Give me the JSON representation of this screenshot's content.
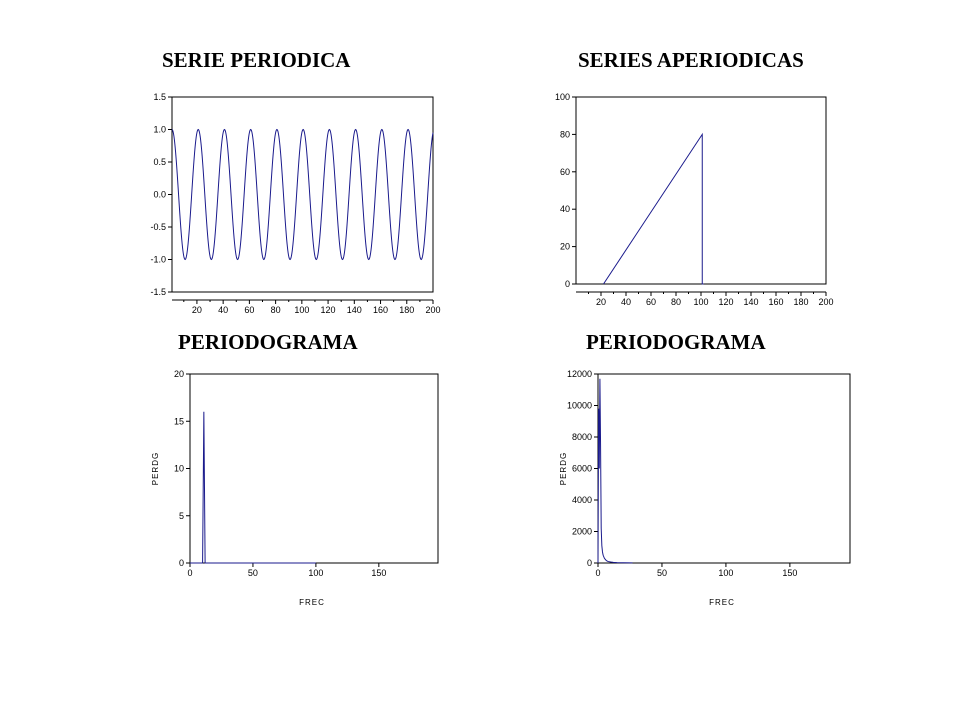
{
  "titles": {
    "top_left": "SERIE PERIODICA",
    "top_right": "SERIES APERIODICAS",
    "bottom_left": "PERIODOGRAMA",
    "bottom_right": "PERIODOGRAMA"
  },
  "colors": {
    "line": "#1a1a8c",
    "axis": "#000000"
  },
  "chart_data": [
    {
      "id": "periodic",
      "type": "line",
      "title": "SERIE PERIODICA",
      "xlabel": "",
      "ylabel": "",
      "xlim": [
        1,
        200
      ],
      "ylim": [
        -1.5,
        1.5
      ],
      "xticks": [
        20,
        40,
        60,
        80,
        100,
        120,
        140,
        160,
        180,
        200
      ],
      "yticks": [
        -1.5,
        -1.0,
        -0.5,
        0.0,
        0.5,
        1.0,
        1.5
      ],
      "ytick_labels": [
        "-1.5",
        "-1.0",
        "-0.5",
        "0.0",
        "0.5",
        "1.0",
        "1.5"
      ],
      "series": [
        {
          "function": "cos(2*pi*(t-1)/20)",
          "x_range": [
            1,
            200
          ]
        }
      ]
    },
    {
      "id": "aperiodic",
      "type": "line",
      "title": "SERIES APERIODICAS",
      "xlabel": "",
      "ylabel": "",
      "xlim": [
        0,
        200
      ],
      "ylim": [
        0,
        100
      ],
      "xticks": [
        20,
        40,
        60,
        80,
        100,
        120,
        140,
        160,
        180,
        200
      ],
      "yticks": [
        0,
        20,
        40,
        60,
        80,
        100
      ],
      "ytick_labels": [
        "0",
        "20",
        "40",
        "60",
        "80",
        "100"
      ],
      "series": [
        {
          "x": [
            22,
            101,
            101,
            101,
            102
          ],
          "y": [
            0,
            80,
            42,
            0,
            0
          ]
        }
      ]
    },
    {
      "id": "periodogram_periodic",
      "type": "line",
      "title": "PERIODOGRAMA",
      "xlabel": "FREC",
      "ylabel": "PERDG",
      "xlim": [
        0,
        197
      ],
      "ylim": [
        0,
        20
      ],
      "xticks": [
        0,
        50,
        100,
        150
      ],
      "yticks": [
        0,
        5,
        10,
        15,
        20
      ],
      "ytick_labels": [
        "0",
        "5",
        "10",
        "15",
        "20"
      ],
      "series": [
        {
          "x": [
            0,
            10,
            10.5,
            11,
            11.5,
            12,
            100
          ],
          "y": [
            0,
            0,
            8,
            16,
            8,
            0,
            0
          ]
        }
      ]
    },
    {
      "id": "periodogram_aperiodic",
      "type": "line",
      "title": "PERIODOGRAMA",
      "xlabel": "FREC",
      "ylabel": "PERDG",
      "xlim": [
        0,
        197
      ],
      "ylim": [
        0,
        12000
      ],
      "xticks": [
        0,
        50,
        100,
        150
      ],
      "yticks": [
        0,
        2000,
        4000,
        6000,
        8000,
        10000,
        12000
      ],
      "ytick_labels": [
        "0",
        "2000",
        "4000",
        "6000",
        "8000",
        "10000",
        "12000"
      ],
      "series": [
        {
          "x": [
            0,
            0.5,
            1,
            1.5,
            2,
            2.5,
            3,
            3.5,
            4,
            5,
            6,
            7,
            8,
            10,
            12,
            15,
            20,
            27
          ],
          "y": [
            0,
            9800,
            6000,
            11700,
            7500,
            2200,
            1100,
            700,
            500,
            300,
            200,
            130,
            90,
            60,
            40,
            25,
            15,
            5
          ]
        }
      ]
    }
  ]
}
